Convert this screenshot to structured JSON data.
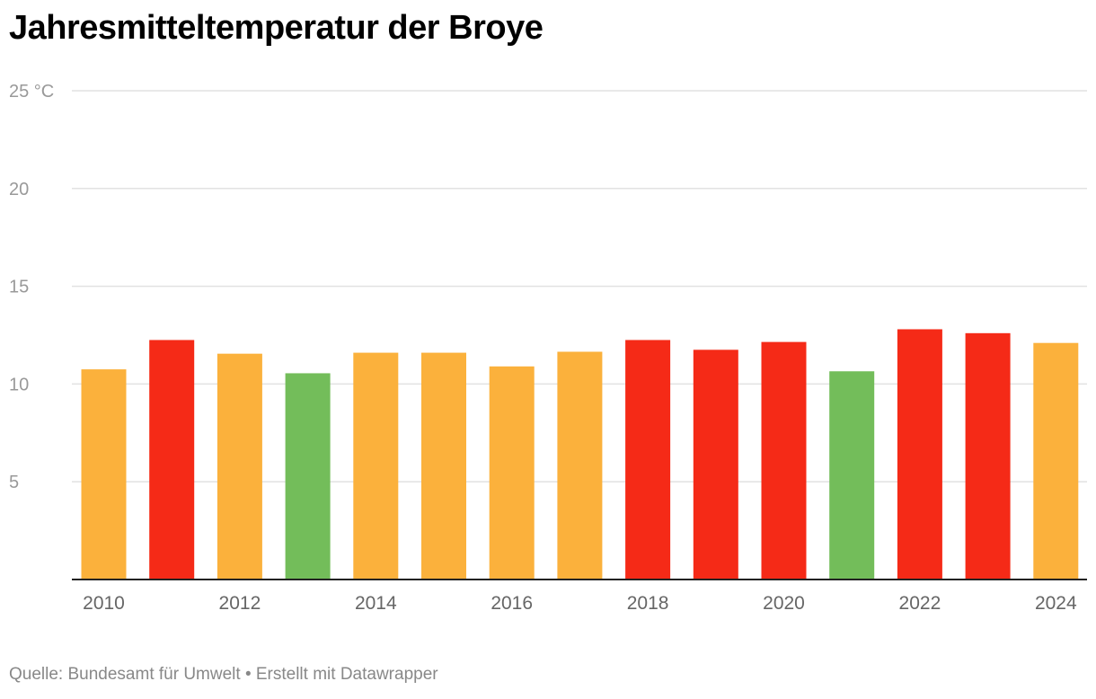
{
  "chart_data": {
    "type": "bar",
    "title": "Jahresmitteltemperatur der Broye",
    "xlabel": "",
    "ylabel": "",
    "y_unit": "°C",
    "ylim": [
      0,
      25
    ],
    "y_ticks": [
      {
        "value": 25,
        "label": "25 °C"
      },
      {
        "value": 20,
        "label": "20"
      },
      {
        "value": 15,
        "label": "15"
      },
      {
        "value": 10,
        "label": "10"
      },
      {
        "value": 5,
        "label": "5"
      }
    ],
    "grid": true,
    "categories": [
      "2010",
      "2011",
      "2012",
      "2013",
      "2014",
      "2015",
      "2016",
      "2017",
      "2018",
      "2019",
      "2020",
      "2021",
      "2022",
      "2023",
      "2024"
    ],
    "x_tick_labels": [
      "2010",
      "2012",
      "2014",
      "2016",
      "2018",
      "2020",
      "2022",
      "2024"
    ],
    "values": [
      10.75,
      12.25,
      11.55,
      10.55,
      11.6,
      11.6,
      10.9,
      11.65,
      12.25,
      11.75,
      12.15,
      10.65,
      12.8,
      12.6,
      12.1
    ],
    "bar_categories": [
      "warm",
      "hot",
      "warm",
      "cool",
      "warm",
      "warm",
      "warm",
      "warm",
      "hot",
      "hot",
      "hot",
      "cool",
      "hot",
      "hot",
      "warm"
    ],
    "colors": {
      "hot": "#f52a17",
      "warm": "#fbb13c",
      "cool": "#73bd5a",
      "grid": "#e2e2e2",
      "axis": "#222222",
      "tick_text": "#999999",
      "x_tick_text": "#666666"
    }
  },
  "footer": "Quelle: Bundesamt für Umwelt • Erstellt mit Datawrapper"
}
